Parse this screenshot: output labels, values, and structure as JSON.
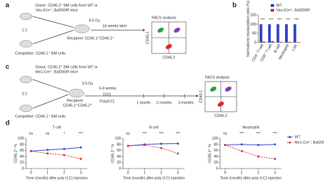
{
  "panel_labels": [
    "a",
    "b",
    "c",
    "d"
  ],
  "panel_a": {
    "donor": [
      "Donor: CD45.2⁺ BM cells from WT or",
      "Vav-iCre⁺; Baf200f/f mice"
    ],
    "ratio": "1:1",
    "dose": "9.5 Gy",
    "interval": "16 weeks later",
    "recipient": "Recipient: CD45.1⁺CD45.2⁺",
    "competitor": "Competitor: CD45.1⁺ BM cells",
    "facs": "FACS analysis",
    "y_axis": "CD45.1",
    "x_axis": "CD45.2"
  },
  "panel_c": {
    "donor": [
      "Donor: CD45.2⁺ BM cells from WT or",
      "Mx1-Cre⁺; Baf200f/f mice"
    ],
    "ratio": "2:1",
    "dose": "9.5 Gy",
    "interval": "6-8 weeks",
    "recipient": [
      "Recipient:",
      "CD45.1⁺CD45.2⁺"
    ],
    "treatment": "Poly(I:C)",
    "timepoints": [
      "1 month",
      "2 months",
      "3 months"
    ],
    "competitor": "Competitor: CD45.1⁺ BM cells",
    "facs": "FACS analysis",
    "y_axis": "CD45.1",
    "x_axis": "CD45.2"
  },
  "chart_data": [
    {
      "type": "bar",
      "ylabel": "Normalized repopulation ratio (%)",
      "categories": [
        "CD4⁺ T cell",
        "CD8⁺ T cell",
        "B cell",
        "Neutrophil",
        "LSK"
      ],
      "series": [
        {
          "name": "WT",
          "color": "#2b3fc9",
          "values": [
            100,
            100,
            100,
            100,
            100
          ]
        },
        {
          "name": "Vav-iCre⁺; Baf200f/f",
          "color": "#d8262b",
          "values": [
            5,
            8,
            3,
            4,
            2
          ]
        }
      ],
      "annotations": [
        "***",
        "***",
        "***",
        "***",
        "***"
      ],
      "ylim": [
        0,
        150
      ],
      "yticks": [
        0,
        50,
        100,
        150
      ],
      "legend": "top-right"
    },
    {
      "type": "line",
      "title": "T cell",
      "xlabel": "Time (month) after poly (I:C) injection",
      "ylabel": "CD45.2⁺ %",
      "x": [
        0,
        1,
        2,
        3
      ],
      "series": [
        {
          "color": "#2b3fc9",
          "values": [
            58,
            62,
            65,
            70
          ]
        },
        {
          "color": "#d8262b",
          "dashed": true,
          "values": [
            58,
            50,
            45,
            32
          ]
        }
      ],
      "annotations": [
        "ns",
        "ns",
        "*",
        "***"
      ],
      "xlim": [
        -0.3,
        3.4
      ],
      "xticks": [
        0,
        1,
        2,
        3
      ],
      "ylim": [
        0,
        100
      ],
      "yticks": [
        0,
        20,
        40,
        60,
        80,
        100
      ]
    },
    {
      "type": "line",
      "title": "B cell",
      "xlabel": "Time (month) after poly (I:C) injection",
      "ylabel": "CD45.2⁺ %",
      "x": [
        0,
        1,
        2,
        3
      ],
      "series": [
        {
          "color": "#2b3fc9",
          "values": [
            75,
            80,
            82,
            83
          ]
        },
        {
          "color": "#d8262b",
          "dashed": true,
          "values": [
            75,
            78,
            68,
            50
          ]
        }
      ],
      "annotations": [
        "ns",
        "***",
        "***",
        "***"
      ],
      "xlim": [
        -0.3,
        3.4
      ],
      "xticks": [
        0,
        1,
        2,
        3
      ],
      "ylim": [
        0,
        100
      ],
      "yticks": [
        0,
        20,
        40,
        60,
        80,
        100
      ]
    },
    {
      "type": "line",
      "title": "Neutrophil",
      "xlabel": "Time (month) after poly (I:C) injection",
      "ylabel": "CD45.2⁺ %",
      "x": [
        0,
        1,
        2,
        3
      ],
      "series": [
        {
          "name": "WT",
          "color": "#2b3fc9",
          "values": [
            78,
            80,
            78,
            80
          ]
        },
        {
          "name": "Mx1-Cre⁺; Baf200f/f",
          "color": "#d8262b",
          "dashed": true,
          "values": [
            78,
            58,
            40,
            32
          ]
        }
      ],
      "annotations": [
        "ns",
        "***",
        "***",
        "***"
      ],
      "xlim": [
        -0.3,
        3.4
      ],
      "xticks": [
        0,
        1,
        2,
        3
      ],
      "ylim": [
        0,
        100
      ],
      "yticks": [
        0,
        20,
        40,
        60,
        80,
        100
      ],
      "legend": "right"
    }
  ]
}
